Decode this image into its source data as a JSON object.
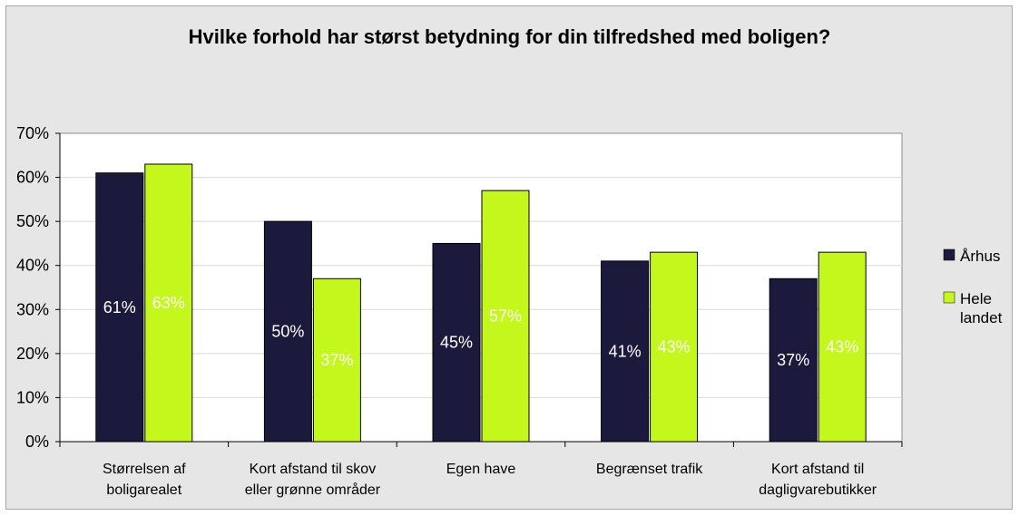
{
  "chart_data": {
    "type": "bar",
    "title": "Hvilke forhold har størst betydning for din tilfredshed med boligen?",
    "categories": [
      [
        "Størrelsen af",
        "boligarealet"
      ],
      [
        "Kort afstand til skov",
        "eller grønne områder"
      ],
      [
        "Egen have"
      ],
      [
        "Begrænset trafik"
      ],
      [
        "Kort afstand til",
        "dagligvarebutikker"
      ]
    ],
    "yticks": [
      "0%",
      "10%",
      "20%",
      "30%",
      "40%",
      "50%",
      "60%",
      "70%"
    ],
    "ylim": [
      0,
      70
    ],
    "series": [
      {
        "name": "Århus",
        "color": "#1c1a3c",
        "label_color": "#ffffff",
        "values": [
          61,
          50,
          45,
          41,
          37
        ],
        "labels": [
          "61%",
          "50%",
          "45%",
          "41%",
          "37%"
        ]
      },
      {
        "name": "Hele landet",
        "legend_lines": [
          "Hele",
          "landet"
        ],
        "color": "#c4f81c",
        "label_color": "#ffffff",
        "values": [
          63,
          37,
          57,
          43,
          43
        ],
        "labels": [
          "63%",
          "37%",
          "57%",
          "43%",
          "43%"
        ]
      }
    ],
    "grid": true,
    "legend_position": "right",
    "plot_background": "#ffffff"
  }
}
